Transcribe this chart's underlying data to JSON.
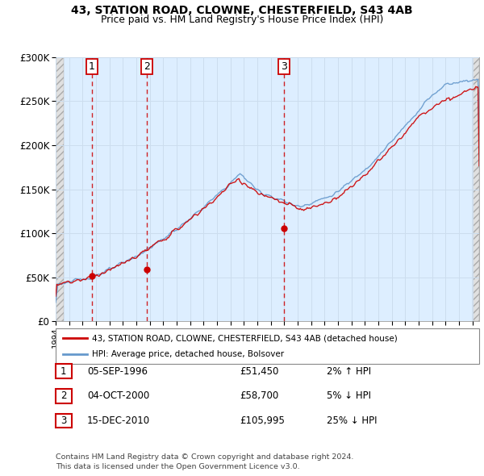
{
  "title1": "43, STATION ROAD, CLOWNE, CHESTERFIELD, S43 4AB",
  "title2": "Price paid vs. HM Land Registry's House Price Index (HPI)",
  "ylabel_ticks": [
    "£0",
    "£50K",
    "£100K",
    "£150K",
    "£200K",
    "£250K",
    "£300K"
  ],
  "ytick_values": [
    0,
    50000,
    100000,
    150000,
    200000,
    250000,
    300000
  ],
  "ylim": [
    0,
    300000
  ],
  "xlim_start": 1994.0,
  "xlim_end": 2025.5,
  "hatch_left_end": 1994.58,
  "hatch_right_start": 2025.0,
  "transactions": [
    {
      "date_num": 1996.68,
      "price": 51450,
      "label": "1"
    },
    {
      "date_num": 2000.76,
      "price": 58700,
      "label": "2"
    },
    {
      "date_num": 2010.96,
      "price": 105995,
      "label": "3"
    }
  ],
  "transaction_color": "#cc0000",
  "hpi_color": "#6699cc",
  "legend_label_red": "43, STATION ROAD, CLOWNE, CHESTERFIELD, S43 4AB (detached house)",
  "legend_label_blue": "HPI: Average price, detached house, Bolsover",
  "table_rows": [
    {
      "num": "1",
      "date": "05-SEP-1996",
      "price": "£51,450",
      "change": "2% ↑ HPI"
    },
    {
      "num": "2",
      "date": "04-OCT-2000",
      "price": "£58,700",
      "change": "5% ↓ HPI"
    },
    {
      "num": "3",
      "date": "15-DEC-2010",
      "price": "£105,995",
      "change": "25% ↓ HPI"
    }
  ],
  "footnote1": "Contains HM Land Registry data © Crown copyright and database right 2024.",
  "footnote2": "This data is licensed under the Open Government Licence v3.0.",
  "grid_color": "#ccddee",
  "bg_color": "#ddeeff",
  "hatch_color": "#cccccc"
}
